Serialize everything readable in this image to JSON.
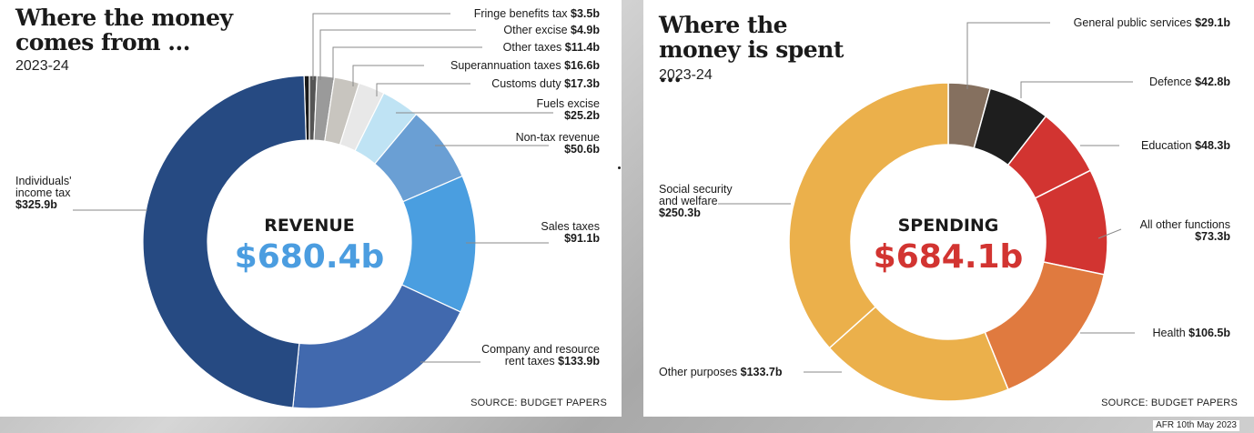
{
  "credit": "AFR 10th May 2023",
  "chart_data": [
    {
      "type": "pie",
      "title": "Where the money comes from ...",
      "subtitle": "2023-24",
      "center_title": "REVENUE",
      "center_value": "$680.4b",
      "center_color": "#4b9de0",
      "source": "SOURCE: BUDGET PAPERS",
      "unit": "$b",
      "slices": [
        {
          "name": "Individuals' income tax",
          "value": 325.9,
          "value_label": "$325.9b",
          "color": "#264a82"
        },
        {
          "name": "Company and resource rent taxes",
          "value": 133.9,
          "value_label": "$133.9b",
          "color": "#4169ae"
        },
        {
          "name": "Sales taxes",
          "value": 91.1,
          "value_label": "$91.1b",
          "color": "#4a9ee0"
        },
        {
          "name": "Non-tax revenue",
          "value": 50.6,
          "value_label": "$50.6b",
          "color": "#6a9fd4"
        },
        {
          "name": "Fuels excise",
          "value": 25.2,
          "value_label": "$25.2b",
          "color": "#bfe3f4"
        },
        {
          "name": "Customs duty",
          "value": 17.3,
          "value_label": "$17.3b",
          "color": "#e8e8e8"
        },
        {
          "name": "Superannuation taxes",
          "value": 16.6,
          "value_label": "$16.6b",
          "color": "#c8c5bf"
        },
        {
          "name": "Other taxes",
          "value": 11.4,
          "value_label": "$11.4b",
          "color": "#9a9a9a"
        },
        {
          "name": "Other excise",
          "value": 4.9,
          "value_label": "$4.9b",
          "color": "#555555"
        },
        {
          "name": "Fringe benefits tax",
          "value": 3.5,
          "value_label": "$3.5b",
          "color": "#1a1a1a"
        }
      ]
    },
    {
      "type": "pie",
      "title": "Where the money is spent ...",
      "subtitle": "2023-24",
      "center_title": "SPENDING",
      "center_value": "$684.1b",
      "center_color": "#d23431",
      "source": "SOURCE: BUDGET PAPERS",
      "unit": "$b",
      "slices": [
        {
          "name": "General public services",
          "value": 29.1,
          "value_label": "$29.1b",
          "color": "#85705f"
        },
        {
          "name": "Defence",
          "value": 42.8,
          "value_label": "$42.8b",
          "color": "#1e1e1e"
        },
        {
          "name": "Education",
          "value": 48.3,
          "value_label": "$48.3b",
          "color": "#d23431"
        },
        {
          "name": "All other functions",
          "value": 73.3,
          "value_label": "$73.3b",
          "color": "#d23431"
        },
        {
          "name": "Health",
          "value": 106.5,
          "value_label": "$106.5b",
          "color": "#e07a3f"
        },
        {
          "name": "Other purposes",
          "value": 133.7,
          "value_label": "$133.7b",
          "color": "#ebb04b"
        },
        {
          "name": "Social security and welfare",
          "value": 250.3,
          "value_label": "$250.3b",
          "color": "#ebb04b"
        }
      ]
    }
  ]
}
